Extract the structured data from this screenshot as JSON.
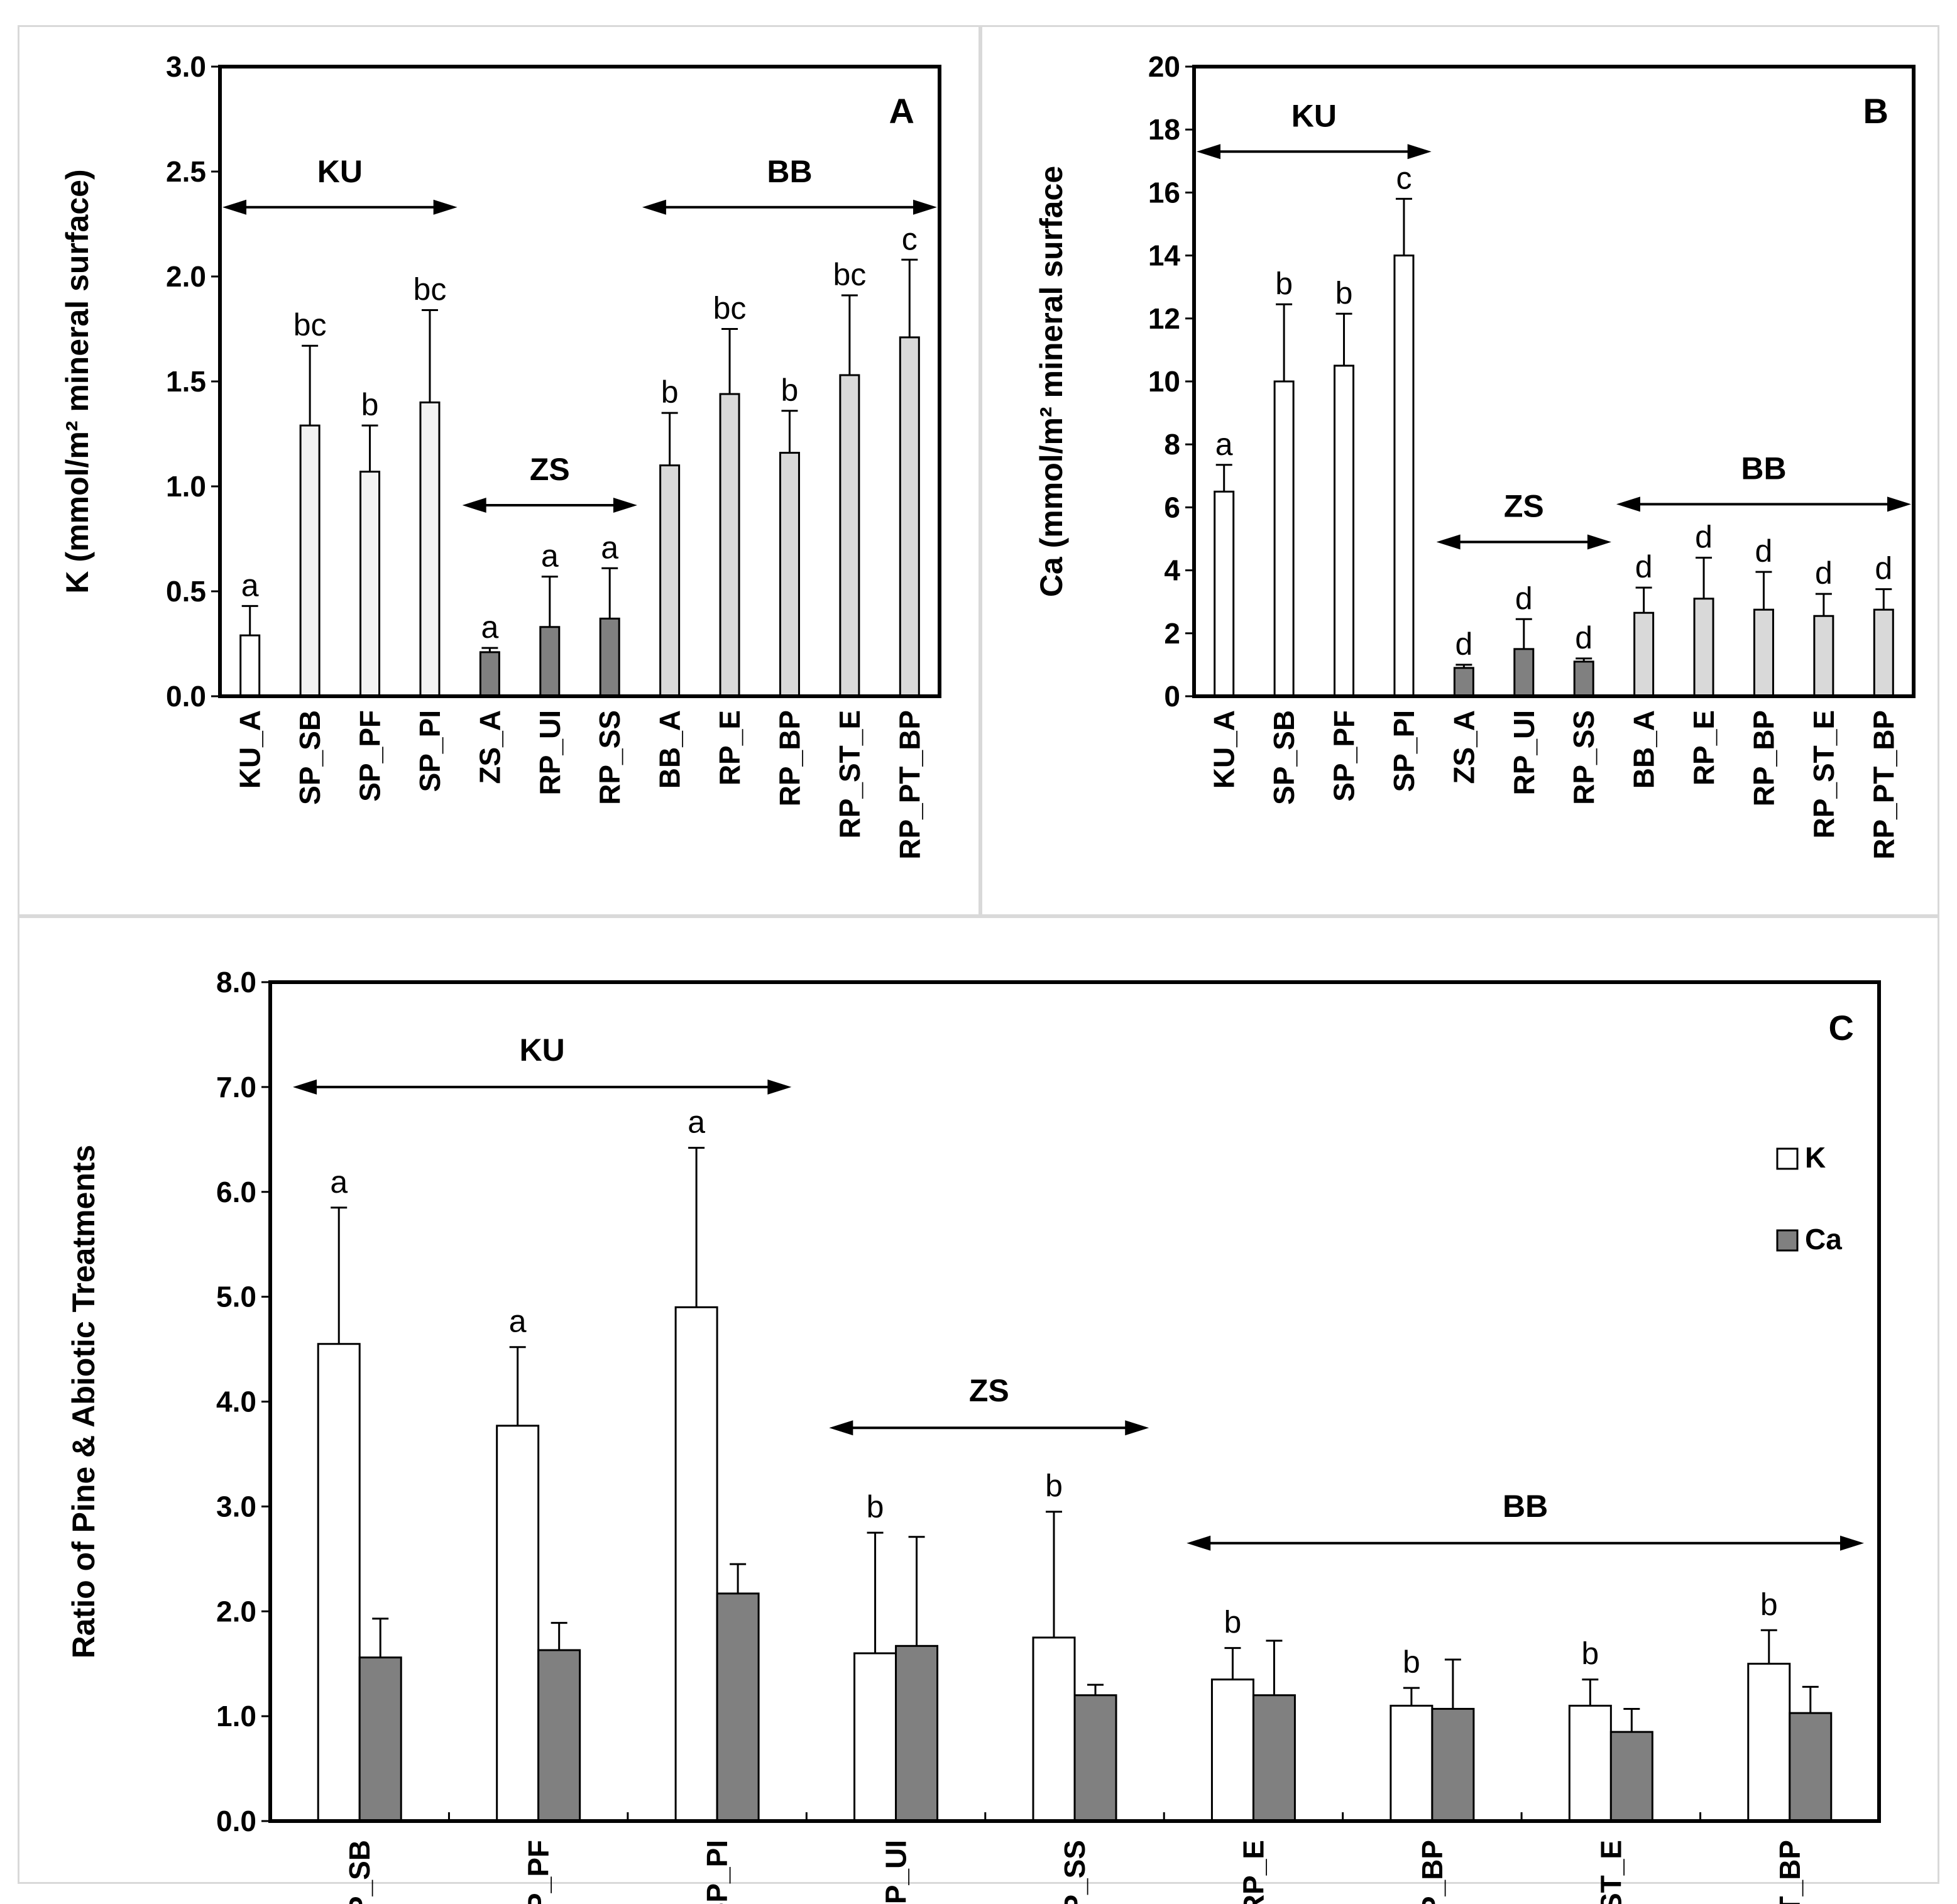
{
  "figure": {
    "panels": [
      "A",
      "B",
      "C"
    ]
  },
  "chart_data": [
    {
      "id": "A",
      "type": "bar",
      "panel_letter": "A",
      "ylabel": "K (mmol/m² mineral surface)",
      "ylim": [
        0,
        3.0
      ],
      "yticks": [
        "0.0",
        "0.5",
        "1.0",
        "1.5",
        "2.0",
        "2.5",
        "3.0"
      ],
      "categories": [
        "KU_A",
        "SP_SB",
        "SP_PF",
        "SP_PI",
        "ZS_A",
        "RP_UI",
        "RP_SS",
        "BB_A",
        "RP_E",
        "RP_BP",
        "RP_ST_E",
        "RP_PT_BP"
      ],
      "values": [
        0.29,
        1.29,
        1.07,
        1.4,
        0.21,
        0.33,
        0.37,
        1.1,
        1.44,
        1.16,
        1.53,
        1.71
      ],
      "errors": [
        0.14,
        0.38,
        0.22,
        0.44,
        0.02,
        0.24,
        0.24,
        0.25,
        0.31,
        0.2,
        0.38,
        0.37
      ],
      "sig_letters": [
        "a",
        "bc",
        "b",
        "bc",
        "a",
        "a",
        "a",
        "b",
        "bc",
        "b",
        "bc",
        "c"
      ],
      "bar_fill": [
        "#ffffff",
        "#f2f2f2",
        "#f2f2f2",
        "#f2f2f2",
        "#808080",
        "#808080",
        "#808080",
        "#d9d9d9",
        "#d9d9d9",
        "#d9d9d9",
        "#d9d9d9",
        "#d9d9d9"
      ],
      "groups": [
        {
          "label": "KU",
          "from": 0,
          "to": 3,
          "value": 2.33
        },
        {
          "label": "ZS",
          "from": 4,
          "to": 6,
          "value": 0.91
        },
        {
          "label": "BB",
          "from": 7,
          "to": 11,
          "value": 2.33
        }
      ]
    },
    {
      "id": "B",
      "type": "bar",
      "panel_letter": "B",
      "ylabel": "Ca (mmol/m² mineral surface",
      "ylim": [
        0,
        20
      ],
      "yticks": [
        "0",
        "2",
        "4",
        "6",
        "8",
        "10",
        "12",
        "14",
        "16",
        "18",
        "20"
      ],
      "categories": [
        "KU_A",
        "SP_SB",
        "SP_PF",
        "SP_PI",
        "ZS_A",
        "RP_UI",
        "RP_SS",
        "BB_A",
        "RP_E",
        "RP_BP",
        "RP_ST_E",
        "RP_PT_BP"
      ],
      "values": [
        6.5,
        10.0,
        10.5,
        14.0,
        0.9,
        1.5,
        1.1,
        2.65,
        3.1,
        2.75,
        2.55,
        2.75
      ],
      "errors": [
        0.85,
        2.45,
        1.65,
        1.8,
        0.1,
        0.95,
        0.1,
        0.8,
        1.3,
        1.2,
        0.7,
        0.65
      ],
      "sig_letters": [
        "a",
        "b",
        "b",
        "c",
        "d",
        "d",
        "d",
        "d",
        "d",
        "d",
        "d",
        "d"
      ],
      "bar_fill": [
        "#ffffff",
        "#ffffff",
        "#ffffff",
        "#ffffff",
        "#808080",
        "#808080",
        "#808080",
        "#d9d9d9",
        "#d9d9d9",
        "#d9d9d9",
        "#d9d9d9",
        "#d9d9d9"
      ],
      "groups": [
        {
          "label": "KU",
          "from": 0,
          "to": 3,
          "value": 17.3
        },
        {
          "label": "ZS",
          "from": 4,
          "to": 6,
          "value": 4.9
        },
        {
          "label": "BB",
          "from": 7,
          "to": 11,
          "value": 6.1
        }
      ]
    },
    {
      "id": "C",
      "type": "bar",
      "panel_letter": "C",
      "ylabel": "Ratio of Pine & Abiotic Treatments",
      "ylim": [
        0,
        8.0
      ],
      "yticks": [
        "0.0",
        "1.0",
        "2.0",
        "3.0",
        "4.0",
        "5.0",
        "6.0",
        "7.0",
        "8.0"
      ],
      "categories": [
        "SP_SB",
        "SP_PF",
        "SP_PI",
        "RP_UI",
        "RP_SS",
        "RP_E",
        "RP_BP",
        "RP_ST_E",
        "RP_PT_BP"
      ],
      "series": [
        {
          "name": "K",
          "color": "#ffffff",
          "values": [
            4.55,
            3.77,
            4.9,
            1.6,
            1.75,
            1.35,
            1.1,
            1.1,
            1.5
          ],
          "errors": [
            1.3,
            0.75,
            1.52,
            1.15,
            1.2,
            0.3,
            0.17,
            0.25,
            0.32
          ]
        },
        {
          "name": "Ca",
          "color": "#808080",
          "values": [
            1.56,
            1.63,
            2.17,
            1.67,
            1.2,
            1.2,
            1.07,
            0.85,
            1.03
          ],
          "errors": [
            0.37,
            0.26,
            0.28,
            1.04,
            0.1,
            0.52,
            0.47,
            0.22,
            0.25
          ]
        }
      ],
      "sig_letters": [
        "a",
        "a",
        "a",
        "b",
        "b",
        "b",
        "b",
        "b",
        "b"
      ],
      "legend_position": "right",
      "groups": [
        {
          "label": "KU",
          "from": 0,
          "to": 2,
          "value": 7.0
        },
        {
          "label": "ZS",
          "from": 3,
          "to": 4,
          "value": 3.75
        },
        {
          "label": "BB",
          "from": 5,
          "to": 8,
          "value": 2.65
        }
      ]
    }
  ]
}
